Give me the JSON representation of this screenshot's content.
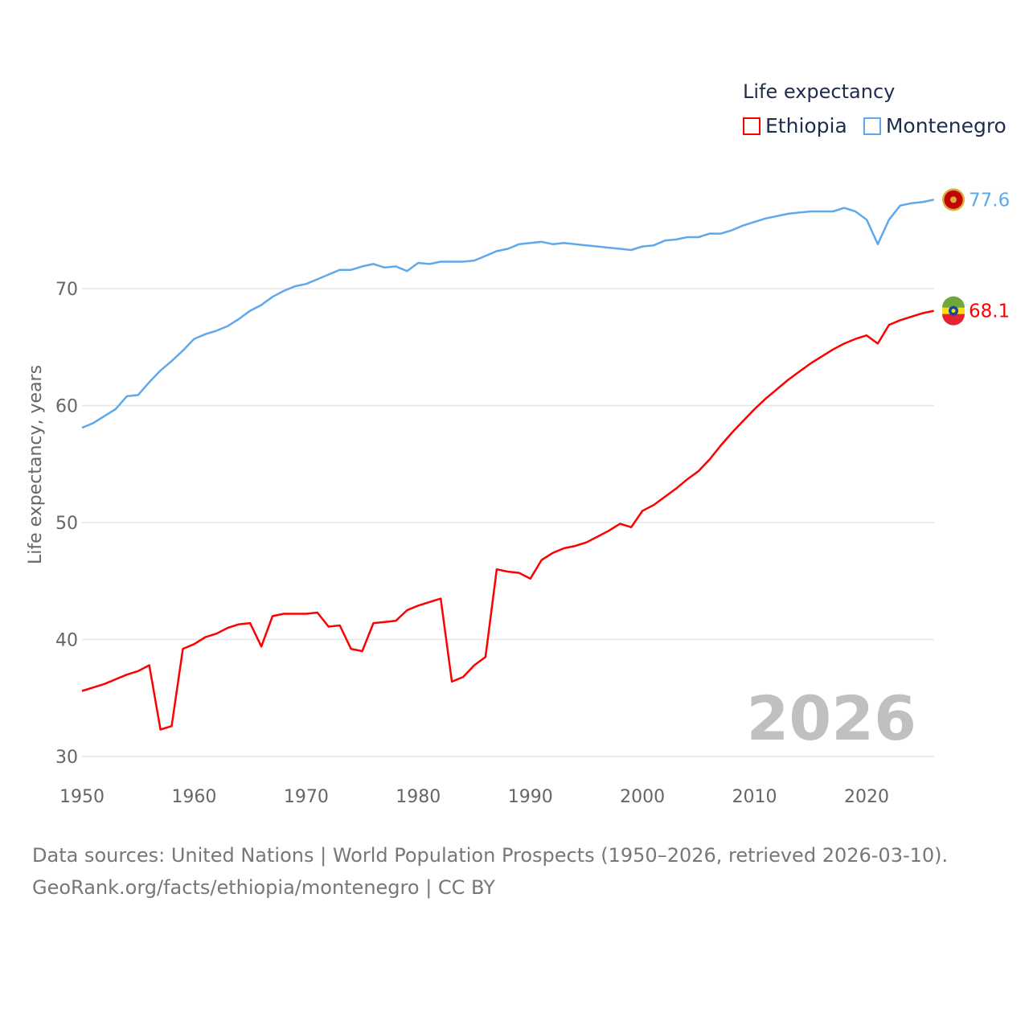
{
  "chart_data": {
    "type": "line",
    "title": "",
    "legend_title": "Life expectancy",
    "legend_placement": "top-right",
    "ylabel": "Life expectancy, years",
    "xlabel": "",
    "xlim": [
      1950,
      2026
    ],
    "ylim": [
      30,
      79
    ],
    "x_ticks": [
      1950,
      1960,
      1970,
      1980,
      1990,
      2000,
      2010,
      2020
    ],
    "y_ticks": [
      30,
      40,
      50,
      60,
      70
    ],
    "grid": true,
    "year_label": "2026",
    "x": [
      1950,
      1951,
      1952,
      1953,
      1954,
      1955,
      1956,
      1957,
      1958,
      1959,
      1960,
      1961,
      1962,
      1963,
      1964,
      1965,
      1966,
      1967,
      1968,
      1969,
      1970,
      1971,
      1972,
      1973,
      1974,
      1975,
      1976,
      1977,
      1978,
      1979,
      1980,
      1981,
      1982,
      1983,
      1984,
      1985,
      1986,
      1987,
      1988,
      1989,
      1990,
      1991,
      1992,
      1993,
      1994,
      1995,
      1996,
      1997,
      1998,
      1999,
      2000,
      2001,
      2002,
      2003,
      2004,
      2005,
      2006,
      2007,
      2008,
      2009,
      2010,
      2011,
      2012,
      2013,
      2014,
      2015,
      2016,
      2017,
      2018,
      2019,
      2020,
      2021,
      2022,
      2023,
      2024,
      2025,
      2026
    ],
    "series": [
      {
        "name": "Ethiopia",
        "color": "#ff0000",
        "end_label": "68.1",
        "values": [
          35.6,
          35.9,
          36.2,
          36.6,
          37.0,
          37.3,
          37.8,
          32.3,
          32.6,
          39.2,
          39.6,
          40.2,
          40.5,
          41.0,
          41.3,
          41.4,
          39.4,
          42.0,
          42.2,
          42.2,
          42.2,
          42.3,
          41.1,
          41.2,
          39.2,
          39.0,
          41.4,
          41.5,
          41.6,
          42.5,
          42.9,
          43.2,
          43.5,
          36.4,
          36.8,
          37.8,
          38.5,
          46.0,
          45.8,
          45.7,
          45.2,
          46.8,
          47.4,
          47.8,
          48.0,
          48.3,
          48.8,
          49.3,
          49.9,
          49.6,
          51.0,
          51.5,
          52.2,
          52.9,
          53.7,
          54.4,
          55.4,
          56.6,
          57.7,
          58.7,
          59.7,
          60.6,
          61.4,
          62.2,
          62.9,
          63.6,
          64.2,
          64.8,
          65.3,
          65.7,
          66.0,
          65.3,
          66.9,
          67.3,
          67.6,
          67.9,
          68.1
        ]
      },
      {
        "name": "Montenegro",
        "color": "#5ea8ec",
        "end_label": "77.6",
        "values": [
          58.1,
          58.5,
          59.1,
          59.7,
          60.8,
          60.9,
          62.0,
          63.0,
          63.8,
          64.7,
          65.7,
          66.1,
          66.4,
          66.8,
          67.4,
          68.1,
          68.6,
          69.3,
          69.8,
          70.2,
          70.4,
          70.8,
          71.2,
          71.6,
          71.6,
          71.9,
          72.1,
          71.8,
          71.9,
          71.5,
          72.2,
          72.1,
          72.3,
          72.3,
          72.3,
          72.4,
          72.8,
          73.2,
          73.4,
          73.8,
          73.9,
          74.0,
          73.8,
          73.9,
          73.8,
          73.7,
          73.6,
          73.5,
          73.4,
          73.3,
          73.6,
          73.7,
          74.1,
          74.2,
          74.4,
          74.4,
          74.7,
          74.7,
          75.0,
          75.4,
          75.7,
          76.0,
          76.2,
          76.4,
          76.5,
          76.6,
          76.6,
          76.6,
          76.9,
          76.6,
          75.9,
          73.8,
          75.9,
          77.1,
          77.3,
          77.4,
          77.6
        ]
      }
    ]
  },
  "footer": {
    "line1": "Data sources: United Nations | World Population Prospects (1950–2026, retrieved 2026-03-10).",
    "line2": "GeoRank.org/facts/ethiopia/montenegro | CC BY"
  }
}
